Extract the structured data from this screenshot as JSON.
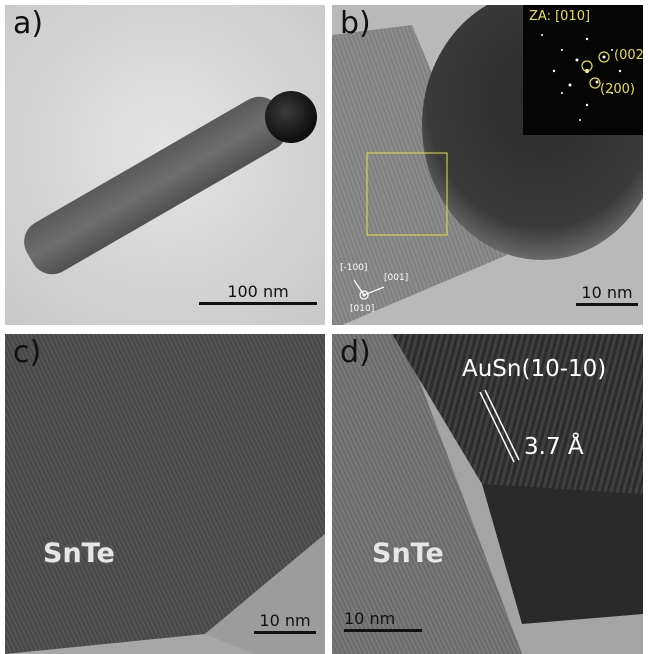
{
  "panels": {
    "a": {
      "label": "a)",
      "scale": "100 nm"
    },
    "b": {
      "label": "b)",
      "scale": "10 nm",
      "fft": {
        "zone_axis": "ZA: [010]",
        "spot1": "(002)",
        "spot2": "(200)"
      },
      "axes": {
        "up": "[-100]",
        "right": "[001]",
        "center": "[010]"
      }
    },
    "c": {
      "label": "c)",
      "scale": "10 nm",
      "material": "SnTe"
    },
    "d": {
      "label": "d)",
      "scale": "10 nm",
      "material": "SnTe",
      "phase": "AuSn(10-10)",
      "spacing": "3.7 Å"
    }
  },
  "colors": {
    "annotation_yellow": "#e8e03a",
    "label_dark": "#111111",
    "label_light": "#ffffff"
  }
}
